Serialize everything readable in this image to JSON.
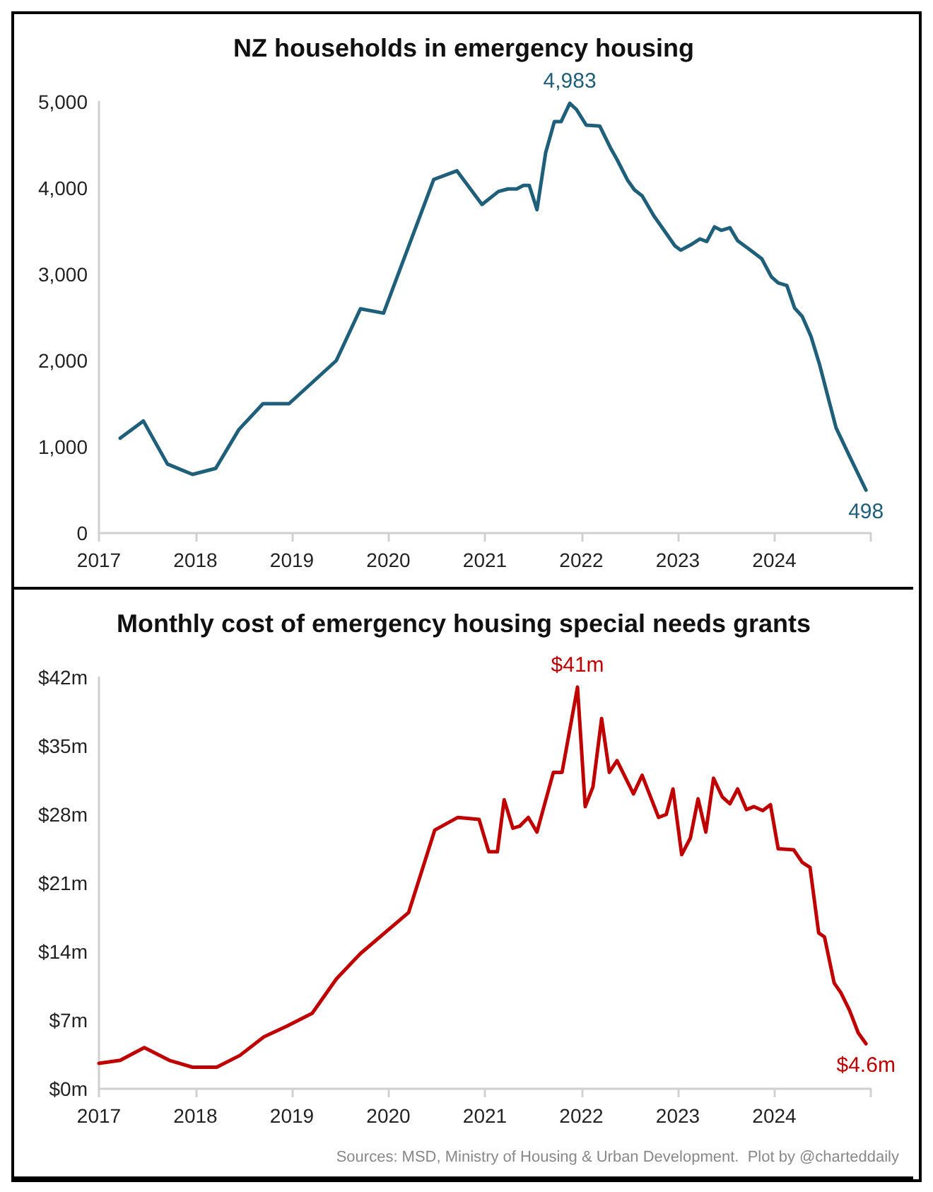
{
  "chart_data": [
    {
      "type": "line",
      "title": "NZ households in emergency housing",
      "color": "#1f5f7a",
      "marker": "none",
      "line_style": "solid",
      "x": [
        2017.22,
        2017.46,
        2017.71,
        2017.97,
        2018.21,
        2018.45,
        2018.7,
        2018.97,
        2019.46,
        2019.71,
        2019.95,
        2020.47,
        2020.71,
        2020.97,
        2021.14,
        2021.24,
        2021.33,
        2021.4,
        2021.46,
        2021.54,
        2021.63,
        2021.72,
        2021.79,
        2021.88,
        2021.95,
        2022.05,
        2022.19,
        2022.3,
        2022.37,
        2022.48,
        2022.55,
        2022.63,
        2022.75,
        2022.87,
        2022.97,
        2023.03,
        2023.13,
        2023.23,
        2023.3,
        2023.38,
        2023.45,
        2023.54,
        2023.62,
        2023.73,
        2023.87,
        2023.97,
        2024.04,
        2024.13,
        2024.21,
        2024.29,
        2024.38,
        2024.47,
        2024.57,
        2024.64,
        2024.78,
        2024.95
      ],
      "values": [
        1100,
        1300,
        800,
        680,
        750,
        1200,
        1500,
        1500,
        2000,
        2600,
        2550,
        4100,
        4200,
        3810,
        3960,
        3990,
        3990,
        4030,
        4030,
        3750,
        4410,
        4770,
        4770,
        4983,
        4910,
        4730,
        4720,
        4470,
        4330,
        4090,
        3980,
        3910,
        3680,
        3490,
        3330,
        3280,
        3340,
        3410,
        3380,
        3550,
        3510,
        3540,
        3390,
        3300,
        3180,
        2970,
        2900,
        2870,
        2610,
        2510,
        2280,
        1950,
        1520,
        1220,
        890,
        498
      ],
      "xlim": [
        2017,
        2025
      ],
      "xticks": [
        2017,
        2018,
        2019,
        2020,
        2021,
        2022,
        2023,
        2024,
        {
          "value": 2025,
          "label": null
        }
      ],
      "ylim": [
        0,
        5000
      ],
      "yticks": [
        0,
        {
          "value": 1000,
          "label": "1,000"
        },
        {
          "value": 2000,
          "label": "2,000"
        },
        {
          "value": 3000,
          "label": "3,000"
        },
        {
          "value": 4000,
          "label": "4,000"
        },
        {
          "value": 5000,
          "label": "5,000"
        }
      ],
      "annotations": [
        {
          "text": "4,983",
          "x": 2021.88,
          "y": 4983
        },
        {
          "text": "498",
          "x": 2024.95,
          "y": 498
        }
      ]
    },
    {
      "type": "line",
      "title": "Monthly cost of emergency housing special needs grants",
      "color": "#c00000",
      "marker": "none",
      "line_style": "solid",
      "x": [
        2017.0,
        2017.22,
        2017.47,
        2017.73,
        2017.97,
        2018.22,
        2018.46,
        2018.71,
        2018.95,
        2019.21,
        2019.46,
        2019.71,
        2020.21,
        2020.48,
        2020.72,
        2020.94,
        2021.04,
        2021.13,
        2021.2,
        2021.29,
        2021.36,
        2021.45,
        2021.54,
        2021.71,
        2021.8,
        2021.96,
        2022.04,
        2022.12,
        2022.21,
        2022.29,
        2022.37,
        2022.54,
        2022.63,
        2022.8,
        2022.88,
        2022.95,
        2023.04,
        2023.13,
        2023.21,
        2023.29,
        2023.37,
        2023.46,
        2023.54,
        2023.62,
        2023.71,
        2023.79,
        2023.88,
        2023.96,
        2024.04,
        2024.2,
        2024.29,
        2024.37,
        2024.46,
        2024.52,
        2024.62,
        2024.69,
        2024.78,
        2024.87,
        2024.95
      ],
      "values": [
        2.6,
        2.9,
        4.2,
        2.9,
        2.2,
        2.2,
        3.4,
        5.3,
        6.4,
        7.7,
        11.2,
        13.8,
        18.0,
        26.4,
        27.7,
        27.5,
        24.2,
        24.2,
        29.5,
        26.6,
        26.8,
        27.7,
        26.2,
        32.3,
        32.3,
        41,
        28.8,
        30.8,
        37.8,
        32.3,
        33.5,
        30.1,
        32.0,
        27.7,
        28.0,
        30.6,
        23.9,
        25.6,
        29.6,
        26.2,
        31.7,
        29.8,
        29.1,
        30.6,
        28.5,
        28.8,
        28.4,
        29.0,
        24.5,
        24.4,
        23.1,
        22.6,
        15.9,
        15.5,
        10.8,
        9.8,
        8.0,
        5.7,
        4.6
      ],
      "xlim": [
        2017,
        2025
      ],
      "xticks": [
        2017,
        2018,
        2019,
        2020,
        2021,
        2022,
        2023,
        2024,
        {
          "value": 2025,
          "label": null
        }
      ],
      "ylim": [
        0,
        42
      ],
      "yticks": [
        {
          "value": 0,
          "label": "$0m"
        },
        {
          "value": 7,
          "label": "$7m"
        },
        {
          "value": 14,
          "label": "$14m"
        },
        {
          "value": 21,
          "label": "$21m"
        },
        {
          "value": 28,
          "label": "$28m"
        },
        {
          "value": 35,
          "label": "$35m"
        },
        {
          "value": 42,
          "label": "$42m"
        }
      ],
      "annotations": [
        {
          "text": "$41m",
          "x": 2021.96,
          "y": 41
        },
        {
          "text": "$4.6m",
          "x": 2024.95,
          "y": 4.6
        },
        "Sources: MSD, Ministry of Housing & Urban Development.  Plot by @charteddaily"
      ]
    }
  ]
}
